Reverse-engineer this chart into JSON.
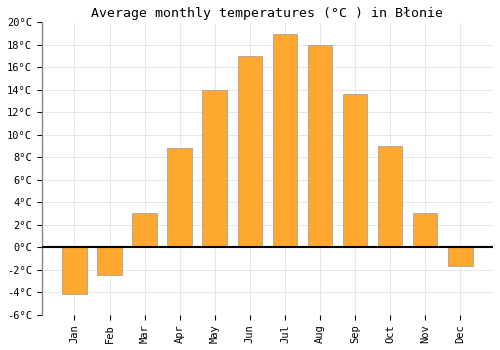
{
  "title": "Average monthly temperatures (°C ) in Błonie",
  "months": [
    "Jan",
    "Feb",
    "Mar",
    "Apr",
    "May",
    "Jun",
    "Jul",
    "Aug",
    "Sep",
    "Oct",
    "Nov",
    "Dec"
  ],
  "values": [
    -4.2,
    -2.5,
    3.0,
    8.8,
    14.0,
    17.0,
    19.0,
    18.0,
    13.6,
    9.0,
    3.0,
    -1.7
  ],
  "bar_color": "#FFA830",
  "bar_edge_color": "#999999",
  "background_color": "#ffffff",
  "grid_color": "#dddddd",
  "ylim": [
    -6,
    20
  ],
  "yticks": [
    -6,
    -4,
    -2,
    0,
    2,
    4,
    6,
    8,
    10,
    12,
    14,
    16,
    18,
    20
  ],
  "ytick_labels": [
    "-6°C",
    "-4°C",
    "-2°C",
    "0°C",
    "2°C",
    "4°C",
    "6°C",
    "8°C",
    "10°C",
    "12°C",
    "14°C",
    "16°C",
    "18°C",
    "20°C"
  ],
  "title_fontsize": 9.5,
  "tick_fontsize": 7.5,
  "bar_width": 0.7
}
